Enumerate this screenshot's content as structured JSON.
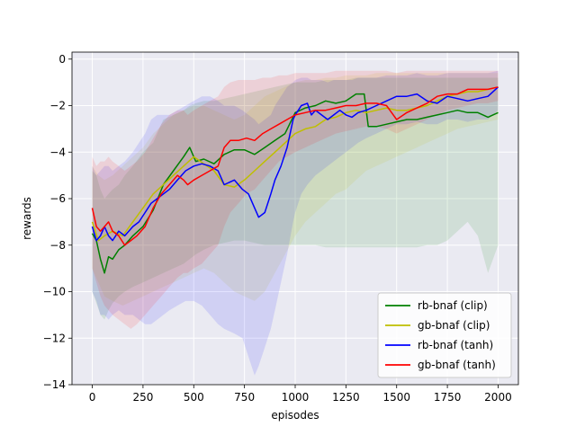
{
  "chart_data": {
    "type": "line",
    "title": "",
    "xlabel": "episodes",
    "ylabel": "rewards",
    "xlim": [
      -100,
      2100
    ],
    "ylim": [
      -14,
      0.3
    ],
    "xticks": [
      0,
      250,
      500,
      750,
      1000,
      1250,
      1500,
      1750,
      2000
    ],
    "yticks": [
      0,
      -2,
      -4,
      -6,
      -8,
      -10,
      -12,
      -14
    ],
    "grid": true,
    "legend_position": "bottom-right",
    "background_color": "#eaeaf2",
    "series": [
      {
        "name": "rb-bnaf (clip)",
        "color": "#008000",
        "x": [
          0,
          20,
          40,
          60,
          80,
          100,
          130,
          160,
          200,
          250,
          300,
          350,
          400,
          450,
          480,
          510,
          550,
          600,
          650,
          700,
          750,
          800,
          850,
          900,
          950,
          1000,
          1050,
          1100,
          1150,
          1200,
          1250,
          1300,
          1340,
          1360,
          1400,
          1450,
          1500,
          1550,
          1600,
          1650,
          1700,
          1750,
          1800,
          1850,
          1900,
          1950,
          2000
        ],
        "y": [
          -7.5,
          -7.8,
          -8.6,
          -9.2,
          -8.5,
          -8.6,
          -8.2,
          -8.0,
          -7.6,
          -7.2,
          -6.5,
          -5.4,
          -4.8,
          -4.2,
          -3.8,
          -4.4,
          -4.3,
          -4.5,
          -4.1,
          -3.9,
          -3.9,
          -4.1,
          -3.8,
          -3.5,
          -3.2,
          -2.3,
          -2.1,
          -2.0,
          -1.8,
          -1.9,
          -1.8,
          -1.5,
          -1.5,
          -2.9,
          -2.9,
          -2.8,
          -2.7,
          -2.6,
          -2.6,
          -2.5,
          -2.4,
          -2.3,
          -2.2,
          -2.3,
          -2.3,
          -2.5,
          -2.3
        ],
        "band_low": [
          -10.0,
          -10.5,
          -11.0,
          -11.2,
          -10.8,
          -10.5,
          -10.2,
          -10.0,
          -9.8,
          -9.6,
          -9.4,
          -9.2,
          -9.0,
          -8.8,
          -8.6,
          -8.4,
          -8.2,
          -8.0,
          -7.9,
          -7.8,
          -7.8,
          -7.9,
          -8.0,
          -8.0,
          -8.0,
          -8.0,
          -8.0,
          -8.0,
          -8.1,
          -8.1,
          -8.1,
          -8.1,
          -8.1,
          -8.1,
          -8.1,
          -8.1,
          -8.1,
          -8.1,
          -8.1,
          -8.0,
          -8.0,
          -7.8,
          -7.4,
          -7.0,
          -7.6,
          -9.2,
          -8.0
        ],
        "band_high": [
          -4.8,
          -5.0,
          -5.6,
          -6.0,
          -5.8,
          -5.6,
          -5.4,
          -5.0,
          -4.6,
          -4.0,
          -3.6,
          -2.6,
          -2.4,
          -2.2,
          -2.0,
          -1.9,
          -1.8,
          -1.8,
          -1.7,
          -1.6,
          -1.5,
          -1.4,
          -1.3,
          -1.2,
          -1.1,
          -1.0,
          -1.0,
          -1.0,
          -0.9,
          -0.9,
          -0.9,
          -0.8,
          -0.8,
          -0.8,
          -0.8,
          -0.8,
          -0.8,
          -0.8,
          -0.8,
          -0.8,
          -0.8,
          -0.8,
          -0.8,
          -0.8,
          -0.8,
          -0.8,
          -0.8
        ]
      },
      {
        "name": "gb-bnaf (clip)",
        "color": "#bfbf00",
        "x": [
          0,
          30,
          60,
          100,
          150,
          200,
          250,
          300,
          350,
          400,
          450,
          500,
          550,
          600,
          650,
          700,
          750,
          800,
          850,
          900,
          950,
          1000,
          1050,
          1100,
          1150,
          1200,
          1250,
          1300,
          1350,
          1400,
          1450,
          1500,
          1550,
          1600,
          1650,
          1700,
          1750,
          1800,
          1850,
          1900,
          1950,
          2000
        ],
        "y": [
          -7.0,
          -7.8,
          -7.6,
          -7.4,
          -7.6,
          -7.0,
          -6.4,
          -5.8,
          -5.4,
          -5.0,
          -4.6,
          -4.2,
          -4.5,
          -4.8,
          -5.4,
          -5.5,
          -5.2,
          -4.8,
          -4.4,
          -4.0,
          -3.6,
          -3.2,
          -3.0,
          -2.9,
          -2.6,
          -2.5,
          -2.3,
          -2.2,
          -2.3,
          -2.2,
          -2.1,
          -2.2,
          -2.2,
          -2.1,
          -2.0,
          -1.8,
          -1.6,
          -1.5,
          -1.4,
          -1.4,
          -1.3,
          -1.2
        ],
        "band_low": [
          -9.0,
          -9.6,
          -10.2,
          -10.4,
          -10.6,
          -10.4,
          -10.2,
          -10.0,
          -9.8,
          -9.6,
          -9.4,
          -9.2,
          -9.0,
          -9.2,
          -9.6,
          -10.0,
          -10.2,
          -10.4,
          -10.0,
          -9.2,
          -8.4,
          -7.6,
          -7.0,
          -6.6,
          -6.2,
          -5.8,
          -5.6,
          -5.2,
          -4.8,
          -4.6,
          -4.4,
          -4.2,
          -4.0,
          -3.8,
          -3.6,
          -3.4,
          -3.2,
          -3.0,
          -2.9,
          -2.8,
          -2.7,
          -2.6
        ],
        "band_high": [
          -4.6,
          -5.0,
          -5.2,
          -5.0,
          -4.6,
          -4.2,
          -3.8,
          -3.2,
          -2.8,
          -2.4,
          -2.2,
          -2.0,
          -2.0,
          -2.2,
          -2.4,
          -2.6,
          -2.4,
          -2.0,
          -1.6,
          -1.4,
          -1.2,
          -1.0,
          -0.9,
          -0.9,
          -0.8,
          -0.8,
          -0.7,
          -0.7,
          -0.7,
          -0.6,
          -0.6,
          -0.6,
          -0.6,
          -0.6,
          -0.6,
          -0.6,
          -0.6,
          -0.6,
          -0.6,
          -0.6,
          -0.6,
          -0.6
        ]
      },
      {
        "name": "rb-bnaf (tanh)",
        "color": "#0000ff",
        "x": [
          0,
          20,
          40,
          60,
          80,
          100,
          130,
          160,
          200,
          230,
          260,
          290,
          320,
          350,
          380,
          420,
          460,
          500,
          540,
          580,
          620,
          650,
          700,
          740,
          770,
          800,
          820,
          850,
          880,
          900,
          930,
          960,
          990,
          1000,
          1030,
          1060,
          1080,
          1100,
          1130,
          1160,
          1190,
          1220,
          1250,
          1280,
          1310,
          1350,
          1400,
          1450,
          1500,
          1550,
          1600,
          1650,
          1700,
          1750,
          1800,
          1850,
          1900,
          1950,
          2000
        ],
        "y": [
          -7.2,
          -7.8,
          -7.6,
          -7.2,
          -7.6,
          -7.8,
          -7.4,
          -7.6,
          -7.2,
          -7.0,
          -6.6,
          -6.2,
          -6.0,
          -5.8,
          -5.6,
          -5.2,
          -4.8,
          -4.6,
          -4.5,
          -4.6,
          -4.8,
          -5.4,
          -5.2,
          -5.6,
          -5.8,
          -6.4,
          -6.8,
          -6.6,
          -5.8,
          -5.2,
          -4.6,
          -3.8,
          -2.6,
          -2.4,
          -2.0,
          -1.9,
          -2.4,
          -2.2,
          -2.4,
          -2.6,
          -2.4,
          -2.2,
          -2.4,
          -2.5,
          -2.3,
          -2.2,
          -2.0,
          -1.8,
          -1.6,
          -1.6,
          -1.5,
          -1.8,
          -1.9,
          -1.6,
          -1.7,
          -1.8,
          -1.7,
          -1.6,
          -1.2
        ],
        "band_low": [
          -10.0,
          -10.4,
          -11.0,
          -11.0,
          -11.2,
          -11.0,
          -10.8,
          -11.0,
          -11.0,
          -11.2,
          -11.4,
          -11.4,
          -11.2,
          -11.0,
          -10.8,
          -10.6,
          -10.4,
          -10.4,
          -10.6,
          -11.0,
          -11.4,
          -11.6,
          -11.8,
          -12.0,
          -12.8,
          -13.6,
          -13.2,
          -12.4,
          -11.6,
          -10.8,
          -9.6,
          -8.4,
          -7.0,
          -6.6,
          -5.8,
          -5.4,
          -5.2,
          -5.0,
          -4.8,
          -4.6,
          -4.4,
          -4.2,
          -4.0,
          -3.8,
          -3.6,
          -3.4,
          -3.2,
          -3.0,
          -2.8,
          -2.8,
          -2.7,
          -2.8,
          -2.8,
          -2.6,
          -2.6,
          -2.7,
          -2.6,
          -2.6,
          -2.2
        ],
        "band_high": [
          -4.6,
          -5.0,
          -4.8,
          -4.6,
          -4.6,
          -4.8,
          -4.6,
          -4.4,
          -4.0,
          -3.6,
          -3.2,
          -2.6,
          -2.4,
          -2.4,
          -2.4,
          -2.2,
          -2.0,
          -1.8,
          -1.6,
          -1.6,
          -1.8,
          -2.0,
          -2.0,
          -2.2,
          -2.4,
          -2.6,
          -2.8,
          -2.6,
          -2.4,
          -2.0,
          -1.6,
          -1.2,
          -1.0,
          -0.9,
          -0.8,
          -0.8,
          -0.9,
          -0.9,
          -0.9,
          -1.0,
          -0.9,
          -0.9,
          -0.9,
          -0.9,
          -0.8,
          -0.8,
          -0.8,
          -0.7,
          -0.7,
          -0.7,
          -0.6,
          -0.7,
          -0.7,
          -0.6,
          -0.6,
          -0.6,
          -0.6,
          -0.6,
          -0.5
        ]
      },
      {
        "name": "gb-bnaf (tanh)",
        "color": "#ff0000",
        "x": [
          0,
          20,
          40,
          60,
          80,
          100,
          130,
          160,
          190,
          220,
          260,
          300,
          340,
          380,
          420,
          450,
          470,
          500,
          540,
          580,
          620,
          650,
          680,
          720,
          760,
          800,
          840,
          880,
          920,
          960,
          1000,
          1050,
          1100,
          1150,
          1200,
          1250,
          1300,
          1350,
          1400,
          1450,
          1500,
          1550,
          1600,
          1650,
          1700,
          1750,
          1800,
          1850,
          1900,
          1950,
          2000
        ],
        "y": [
          -6.4,
          -7.2,
          -7.4,
          -7.2,
          -7.0,
          -7.4,
          -7.6,
          -8.0,
          -7.8,
          -7.6,
          -7.2,
          -6.4,
          -5.8,
          -5.4,
          -5.0,
          -5.2,
          -5.4,
          -5.2,
          -5.0,
          -4.8,
          -4.6,
          -3.8,
          -3.5,
          -3.5,
          -3.4,
          -3.5,
          -3.2,
          -3.0,
          -2.8,
          -2.6,
          -2.4,
          -2.3,
          -2.2,
          -2.2,
          -2.1,
          -2.0,
          -2.0,
          -1.9,
          -1.9,
          -2.0,
          -2.6,
          -2.3,
          -2.1,
          -1.9,
          -1.6,
          -1.5,
          -1.5,
          -1.3,
          -1.3,
          -1.3,
          -1.2
        ],
        "band_low": [
          -9.0,
          -9.6,
          -10.2,
          -10.6,
          -10.8,
          -11.0,
          -11.2,
          -11.4,
          -11.6,
          -11.4,
          -11.0,
          -10.6,
          -10.2,
          -9.8,
          -9.4,
          -9.2,
          -9.2,
          -9.0,
          -8.8,
          -8.4,
          -8.0,
          -7.2,
          -6.6,
          -6.2,
          -5.8,
          -5.6,
          -5.2,
          -4.8,
          -4.4,
          -4.2,
          -4.0,
          -3.8,
          -3.6,
          -3.4,
          -3.2,
          -3.1,
          -3.0,
          -2.9,
          -2.9,
          -3.0,
          -3.2,
          -3.0,
          -2.8,
          -2.6,
          -2.4,
          -2.2,
          -2.1,
          -2.0,
          -1.9,
          -1.9,
          -1.8
        ],
        "band_high": [
          -4.2,
          -4.6,
          -4.4,
          -4.4,
          -4.2,
          -4.4,
          -4.6,
          -4.8,
          -4.6,
          -4.4,
          -4.0,
          -3.4,
          -2.8,
          -2.4,
          -2.2,
          -2.2,
          -2.4,
          -2.2,
          -2.0,
          -1.8,
          -1.6,
          -1.2,
          -1.0,
          -0.9,
          -0.9,
          -0.9,
          -0.8,
          -0.8,
          -0.7,
          -0.7,
          -0.6,
          -0.6,
          -0.6,
          -0.6,
          -0.5,
          -0.5,
          -0.5,
          -0.5,
          -0.5,
          -0.5,
          -0.6,
          -0.5,
          -0.5,
          -0.5,
          -0.5,
          -0.5,
          -0.5,
          -0.5,
          -0.5,
          -0.5,
          -0.5
        ]
      }
    ]
  }
}
